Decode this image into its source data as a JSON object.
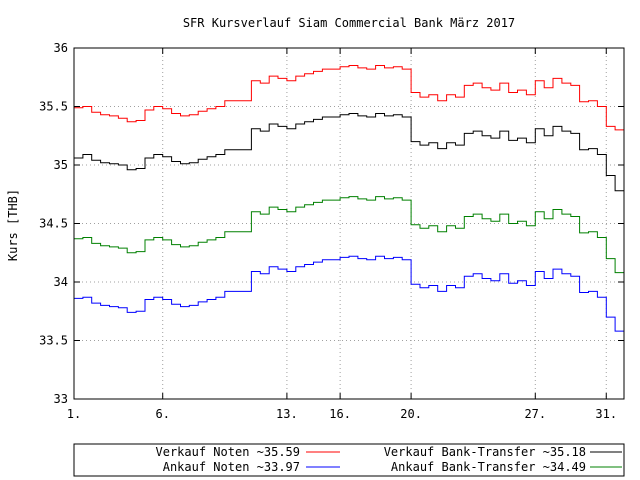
{
  "chart_data": {
    "type": "line",
    "title": "SFR Kursverlauf Siam Commercial Bank März 2017",
    "xlabel": "",
    "ylabel": "Kurs [THB]",
    "xlim": [
      1,
      32
    ],
    "ylim": [
      33,
      36
    ],
    "x_ticks": [
      {
        "x": 1,
        "label": "1."
      },
      {
        "x": 6,
        "label": "6."
      },
      {
        "x": 13,
        "label": "13."
      },
      {
        "x": 16,
        "label": "16."
      },
      {
        "x": 20,
        "label": "20."
      },
      {
        "x": 27,
        "label": "27."
      },
      {
        "x": 31,
        "label": "31."
      }
    ],
    "y_ticks": [
      33,
      33.5,
      34,
      34.5,
      35,
      35.5,
      36
    ],
    "y_tick_labels": [
      "33",
      "33.5",
      "34",
      "34.5",
      "35",
      "35.5",
      "36"
    ],
    "grid": true,
    "legend_position": "bottom",
    "legend": [
      {
        "label": "Verkauf Noten ~35.59",
        "color": "#ff0000"
      },
      {
        "label": "Verkauf Bank-Transfer ~35.18",
        "color": "#000000"
      },
      {
        "label": "Ankauf Noten ~33.97",
        "color": "#0000ff"
      },
      {
        "label": "Ankauf Bank-Transfer ~34.49",
        "color": "#008000"
      }
    ],
    "series": [
      {
        "name": "Verkauf Noten",
        "color": "#ff0000",
        "x": [
          1,
          1.5,
          2,
          2.5,
          3,
          3.5,
          4,
          4.5,
          5,
          5.5,
          6,
          6.5,
          7,
          7.5,
          8,
          8.5,
          9,
          9.5,
          10,
          10.5,
          11,
          11.5,
          12,
          12.5,
          13,
          13.5,
          14,
          14.5,
          15,
          15.5,
          16,
          16.5,
          17,
          17.5,
          18,
          18.5,
          19,
          19.5,
          20,
          20.5,
          21,
          21.5,
          22,
          22.5,
          23,
          23.5,
          24,
          24.5,
          25,
          25.5,
          26,
          26.5,
          27,
          27.5,
          28,
          28.5,
          29,
          29.5,
          30,
          30.5,
          31,
          31.5,
          32
        ],
        "y": [
          35.49,
          35.5,
          35.45,
          35.43,
          35.42,
          35.4,
          35.37,
          35.38,
          35.47,
          35.5,
          35.48,
          35.44,
          35.42,
          35.43,
          35.46,
          35.48,
          35.5,
          35.55,
          35.55,
          35.55,
          35.72,
          35.7,
          35.76,
          35.74,
          35.72,
          35.76,
          35.78,
          35.8,
          35.82,
          35.82,
          35.84,
          35.85,
          35.83,
          35.82,
          35.85,
          35.83,
          35.84,
          35.82,
          35.62,
          35.58,
          35.6,
          35.55,
          35.6,
          35.58,
          35.68,
          35.7,
          35.66,
          35.64,
          35.7,
          35.62,
          35.64,
          35.6,
          35.72,
          35.66,
          35.74,
          35.7,
          35.68,
          35.54,
          35.55,
          35.5,
          35.33,
          35.3,
          35.13
        ]
      },
      {
        "name": "Verkauf Bank-Transfer",
        "color": "#000000",
        "x": [
          1,
          1.5,
          2,
          2.5,
          3,
          3.5,
          4,
          4.5,
          5,
          5.5,
          6,
          6.5,
          7,
          7.5,
          8,
          8.5,
          9,
          9.5,
          10,
          10.5,
          11,
          11.5,
          12,
          12.5,
          13,
          13.5,
          14,
          14.5,
          15,
          15.5,
          16,
          16.5,
          17,
          17.5,
          18,
          18.5,
          19,
          19.5,
          20,
          20.5,
          21,
          21.5,
          22,
          22.5,
          23,
          23.5,
          24,
          24.5,
          25,
          25.5,
          26,
          26.5,
          27,
          27.5,
          28,
          28.5,
          29,
          29.5,
          30,
          30.5,
          31,
          31.5,
          32
        ],
        "y": [
          35.06,
          35.09,
          35.04,
          35.02,
          35.01,
          35.0,
          34.96,
          34.97,
          35.06,
          35.09,
          35.07,
          35.03,
          35.01,
          35.02,
          35.05,
          35.07,
          35.09,
          35.13,
          35.13,
          35.13,
          35.31,
          35.29,
          35.35,
          35.33,
          35.31,
          35.35,
          35.37,
          35.39,
          35.41,
          35.41,
          35.43,
          35.44,
          35.42,
          35.41,
          35.44,
          35.42,
          35.43,
          35.41,
          35.2,
          35.17,
          35.19,
          35.14,
          35.19,
          35.17,
          35.27,
          35.29,
          35.25,
          35.23,
          35.29,
          35.21,
          35.23,
          35.19,
          35.31,
          35.25,
          35.33,
          35.29,
          35.27,
          35.13,
          35.14,
          35.09,
          34.91,
          34.78,
          34.7
        ]
      },
      {
        "name": "Ankauf Bank-Transfer",
        "color": "#008000",
        "x": [
          1,
          1.5,
          2,
          2.5,
          3,
          3.5,
          4,
          4.5,
          5,
          5.5,
          6,
          6.5,
          7,
          7.5,
          8,
          8.5,
          9,
          9.5,
          10,
          10.5,
          11,
          11.5,
          12,
          12.5,
          13,
          13.5,
          14,
          14.5,
          15,
          15.5,
          16,
          16.5,
          17,
          17.5,
          18,
          18.5,
          19,
          19.5,
          20,
          20.5,
          21,
          21.5,
          22,
          22.5,
          23,
          23.5,
          24,
          24.5,
          25,
          25.5,
          26,
          26.5,
          27,
          27.5,
          28,
          28.5,
          29,
          29.5,
          30,
          30.5,
          31,
          31.5,
          32
        ],
        "y": [
          34.37,
          34.38,
          34.33,
          34.31,
          34.3,
          34.29,
          34.25,
          34.26,
          34.36,
          34.38,
          34.36,
          34.32,
          34.3,
          34.31,
          34.34,
          34.36,
          34.38,
          34.43,
          34.43,
          34.43,
          34.6,
          34.58,
          34.64,
          34.62,
          34.6,
          34.64,
          34.66,
          34.68,
          34.7,
          34.7,
          34.72,
          34.73,
          34.71,
          34.7,
          34.73,
          34.71,
          34.72,
          34.7,
          34.49,
          34.46,
          34.48,
          34.43,
          34.48,
          34.46,
          34.56,
          34.58,
          34.54,
          34.52,
          34.58,
          34.5,
          34.52,
          34.48,
          34.6,
          34.54,
          34.62,
          34.58,
          34.56,
          34.42,
          34.43,
          34.38,
          34.2,
          34.08,
          34.0
        ]
      },
      {
        "name": "Ankauf Noten",
        "color": "#0000ff",
        "x": [
          1,
          1.5,
          2,
          2.5,
          3,
          3.5,
          4,
          4.5,
          5,
          5.5,
          6,
          6.5,
          7,
          7.5,
          8,
          8.5,
          9,
          9.5,
          10,
          10.5,
          11,
          11.5,
          12,
          12.5,
          13,
          13.5,
          14,
          14.5,
          15,
          15.5,
          16,
          16.5,
          17,
          17.5,
          18,
          18.5,
          19,
          19.5,
          20,
          20.5,
          21,
          21.5,
          22,
          22.5,
          23,
          23.5,
          24,
          24.5,
          25,
          25.5,
          26,
          26.5,
          27,
          27.5,
          28,
          28.5,
          29,
          29.5,
          30,
          30.5,
          31,
          31.5,
          32
        ],
        "y": [
          33.86,
          33.87,
          33.82,
          33.8,
          33.79,
          33.78,
          33.74,
          33.75,
          33.85,
          33.87,
          33.85,
          33.81,
          33.79,
          33.8,
          33.83,
          33.85,
          33.87,
          33.92,
          33.92,
          33.92,
          34.09,
          34.07,
          34.13,
          34.11,
          34.09,
          34.13,
          34.15,
          34.17,
          34.19,
          34.19,
          34.21,
          34.22,
          34.2,
          34.19,
          34.22,
          34.2,
          34.21,
          34.19,
          33.98,
          33.95,
          33.97,
          33.92,
          33.97,
          33.95,
          34.05,
          34.07,
          34.03,
          34.01,
          34.07,
          33.99,
          34.01,
          33.97,
          34.09,
          34.03,
          34.11,
          34.07,
          34.05,
          33.91,
          33.92,
          33.87,
          33.7,
          33.58,
          33.49
        ]
      }
    ]
  }
}
